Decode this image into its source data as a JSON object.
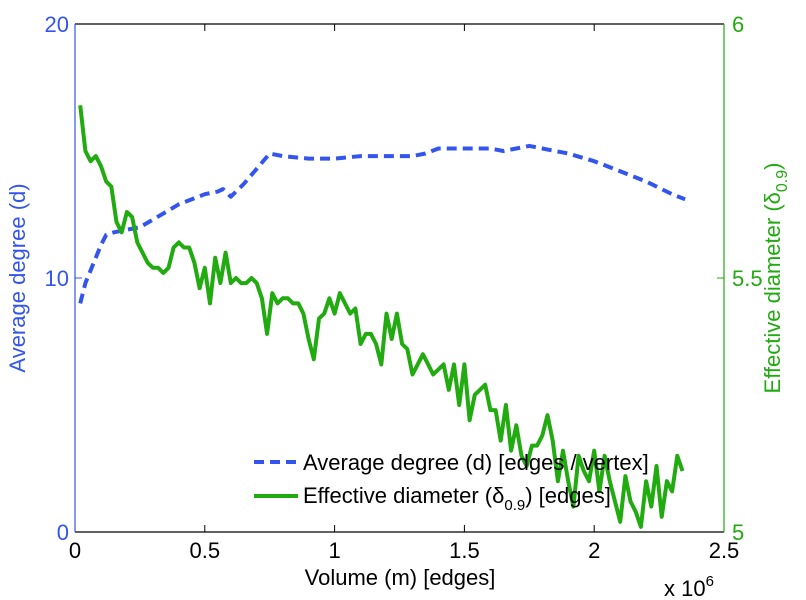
{
  "chart_data": {
    "type": "line",
    "xlabel": "Volume (m) [edges]",
    "x_exponent_label": "x 10",
    "x_exponent_power": "6",
    "xlim": [
      0,
      2.5
    ],
    "x_ticks": [
      0,
      0.5,
      1,
      1.5,
      2,
      2.5
    ],
    "x_tick_labels": [
      "0",
      "0.5",
      "1",
      "1.5",
      "2",
      "2.5"
    ],
    "y_left": {
      "label": "Average degree (d)",
      "lim": [
        0,
        20
      ],
      "ticks": [
        0,
        10,
        20
      ],
      "tick_labels": [
        "0",
        "10",
        "20"
      ],
      "color": "#3355ee"
    },
    "y_right": {
      "label_main": "Effective diameter (",
      "label_delta": "δ",
      "label_sub": "0.9",
      "label_end": ")",
      "lim": [
        5,
        6
      ],
      "ticks": [
        5,
        5.5,
        6
      ],
      "tick_labels": [
        "5",
        "5.5",
        "6"
      ],
      "color": "#22aa11"
    },
    "series": [
      {
        "name": "Average degree (d) [edges / vertex]",
        "axis": "left",
        "style": "dashed",
        "color": "#3355ee",
        "x": [
          0.02,
          0.04,
          0.06,
          0.08,
          0.1,
          0.12,
          0.15,
          0.2,
          0.25,
          0.3,
          0.35,
          0.4,
          0.45,
          0.5,
          0.55,
          0.57,
          0.6,
          0.65,
          0.7,
          0.75,
          0.8,
          0.9,
          1.0,
          1.1,
          1.2,
          1.3,
          1.35,
          1.4,
          1.5,
          1.6,
          1.65,
          1.7,
          1.75,
          1.8,
          1.9,
          2.0,
          2.1,
          2.2,
          2.3,
          2.35
        ],
        "y": [
          9.0,
          9.8,
          10.3,
          10.8,
          11.3,
          11.7,
          11.8,
          11.9,
          12.0,
          12.3,
          12.6,
          12.9,
          13.1,
          13.3,
          13.4,
          13.5,
          13.2,
          13.7,
          14.3,
          14.9,
          14.8,
          14.7,
          14.7,
          14.8,
          14.8,
          14.8,
          14.9,
          15.1,
          15.1,
          15.1,
          15.0,
          15.1,
          15.2,
          15.1,
          14.9,
          14.6,
          14.2,
          13.8,
          13.3,
          13.1
        ]
      },
      {
        "name_main": "Effective diameter (",
        "name_delta": "δ",
        "name_sub": "0.9",
        "name_end": ") [edges]",
        "axis": "right",
        "style": "solid",
        "color": "#22aa11",
        "x": [
          0.02,
          0.04,
          0.06,
          0.08,
          0.1,
          0.12,
          0.14,
          0.16,
          0.18,
          0.2,
          0.22,
          0.24,
          0.26,
          0.28,
          0.3,
          0.32,
          0.34,
          0.36,
          0.38,
          0.4,
          0.42,
          0.44,
          0.46,
          0.48,
          0.5,
          0.52,
          0.54,
          0.56,
          0.58,
          0.6,
          0.62,
          0.64,
          0.66,
          0.68,
          0.7,
          0.72,
          0.74,
          0.76,
          0.78,
          0.8,
          0.82,
          0.84,
          0.86,
          0.88,
          0.9,
          0.92,
          0.94,
          0.96,
          0.98,
          1.0,
          1.02,
          1.04,
          1.06,
          1.08,
          1.1,
          1.12,
          1.14,
          1.16,
          1.18,
          1.2,
          1.22,
          1.24,
          1.26,
          1.28,
          1.3,
          1.32,
          1.34,
          1.36,
          1.38,
          1.4,
          1.42,
          1.44,
          1.46,
          1.48,
          1.5,
          1.52,
          1.54,
          1.56,
          1.58,
          1.6,
          1.62,
          1.64,
          1.66,
          1.68,
          1.7,
          1.72,
          1.74,
          1.76,
          1.78,
          1.8,
          1.82,
          1.84,
          1.86,
          1.88,
          1.9,
          1.92,
          1.94,
          1.96,
          1.98,
          2.0,
          2.02,
          2.04,
          2.06,
          2.08,
          2.1,
          2.12,
          2.14,
          2.16,
          2.18,
          2.2,
          2.22,
          2.24,
          2.26,
          2.28,
          2.3,
          2.32,
          2.34
        ],
        "y": [
          5.84,
          5.75,
          5.73,
          5.74,
          5.72,
          5.69,
          5.68,
          5.61,
          5.59,
          5.63,
          5.62,
          5.57,
          5.55,
          5.53,
          5.52,
          5.52,
          5.51,
          5.52,
          5.56,
          5.57,
          5.56,
          5.56,
          5.53,
          5.48,
          5.52,
          5.45,
          5.54,
          5.49,
          5.55,
          5.49,
          5.5,
          5.49,
          5.49,
          5.5,
          5.49,
          5.46,
          5.39,
          5.47,
          5.45,
          5.46,
          5.46,
          5.45,
          5.45,
          5.43,
          5.38,
          5.34,
          5.42,
          5.43,
          5.46,
          5.43,
          5.47,
          5.45,
          5.43,
          5.44,
          5.37,
          5.39,
          5.39,
          5.37,
          5.33,
          5.43,
          5.38,
          5.43,
          5.37,
          5.36,
          5.31,
          5.33,
          5.35,
          5.33,
          5.31,
          5.32,
          5.33,
          5.28,
          5.33,
          5.25,
          5.33,
          5.22,
          5.27,
          5.28,
          5.29,
          5.24,
          5.24,
          5.18,
          5.25,
          5.16,
          5.21,
          5.15,
          5.13,
          5.17,
          5.17,
          5.19,
          5.23,
          5.18,
          5.1,
          5.16,
          5.1,
          5.05,
          5.15,
          5.12,
          5.1,
          5.16,
          5.08,
          5.15,
          5.1,
          5.06,
          5.02,
          5.11,
          5.06,
          5.04,
          5.01,
          5.1,
          5.05,
          5.13,
          5.03,
          5.1,
          5.08,
          5.15,
          5.12
        ]
      }
    ],
    "legend": {
      "placement": "bottom-right",
      "entry1": "Average degree (d) [edges / vertex]"
    },
    "grid": false
  }
}
